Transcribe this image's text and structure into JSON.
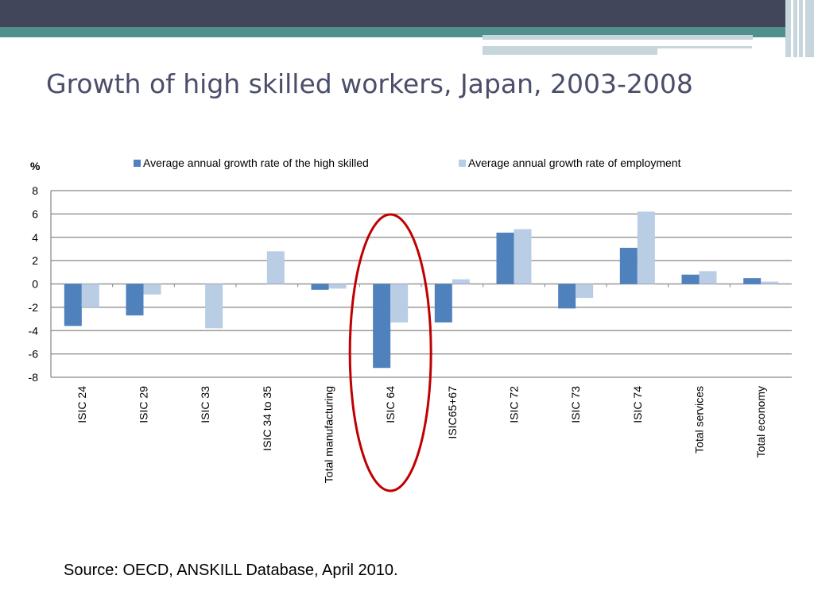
{
  "slide": {
    "title": "Growth of high skilled workers, Japan, 2003-2008",
    "source": "Source: OECD, ANSKILL Database, April 2010."
  },
  "colors": {
    "banner_dark": "#42465a",
    "banner_teal": "#4f8f8c",
    "banner_light": "#c6d6dc",
    "title": "#4a4e6a",
    "series_high_skilled": "#4f81bd",
    "series_employment": "#b9cde5",
    "highlight_oval": "#c00000",
    "gridline": "#868686"
  },
  "chart_data": {
    "type": "bar",
    "unit_label": "%",
    "categories": [
      "ISIC 24",
      "ISIC 29",
      "ISIC 33",
      "ISIC 34 to 35",
      "Total manufacturing",
      "ISIC 64",
      "ISIC65+67",
      "ISIC 72",
      "ISIC 73",
      "ISIC 74",
      "Total services",
      "Total economy"
    ],
    "series": [
      {
        "name": "Average annual growth rate of the high skilled",
        "values": [
          -3.6,
          -2.7,
          null,
          null,
          -0.5,
          -7.2,
          -3.3,
          4.4,
          -2.1,
          3.1,
          0.8,
          0.5
        ]
      },
      {
        "name": "Average annual growth rate of employment",
        "values": [
          -2.0,
          -0.9,
          -3.8,
          2.8,
          -0.4,
          -3.3,
          0.4,
          4.7,
          -1.2,
          6.2,
          1.1,
          0.2
        ]
      }
    ],
    "ylim": [
      -8,
      8
    ],
    "yticks": [
      8,
      6,
      4,
      2,
      0,
      -2,
      -4,
      -6,
      -8
    ],
    "grid": true,
    "legend_position": "top",
    "highlighted_category": "ISIC 64"
  }
}
